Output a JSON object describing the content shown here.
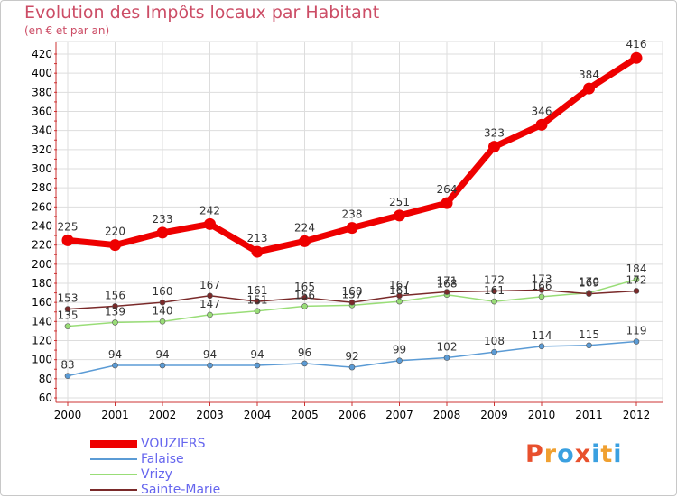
{
  "title": "Evolution des Impôts locaux par Habitant",
  "subtitle": "(en € et par an)",
  "logo": {
    "text": "Proxiti",
    "colors": [
      "#e8502d",
      "#f0a030",
      "#3aa0e0",
      "#e8502d",
      "#3aa0e0",
      "#f0a030",
      "#3aa0e0"
    ]
  },
  "chart_data": {
    "type": "line",
    "title": "Evolution des Impôts locaux par Habitant",
    "subtitle": "(en € et par an)",
    "xlabel": "",
    "ylabel": "",
    "x": [
      "2000",
      "2001",
      "2002",
      "2003",
      "2004",
      "2005",
      "2006",
      "2007",
      "2008",
      "2009",
      "2010",
      "2011",
      "2012"
    ],
    "ylim": [
      60,
      420
    ],
    "yticks": [
      60,
      80,
      100,
      120,
      140,
      160,
      180,
      200,
      220,
      240,
      260,
      280,
      300,
      320,
      340,
      360,
      380,
      400,
      420
    ],
    "grid": true,
    "legend_position": "bottom-left",
    "series": [
      {
        "name": "VOUZIERS",
        "color": "#ee0000",
        "values": [
          225,
          220,
          233,
          242,
          213,
          224,
          238,
          251,
          264,
          323,
          346,
          384,
          416
        ]
      },
      {
        "name": "Falaise",
        "color": "#5b9bd5",
        "values": [
          83,
          94,
          94,
          94,
          94,
          96,
          92,
          99,
          102,
          108,
          114,
          115,
          119
        ]
      },
      {
        "name": "Vrizy",
        "color": "#99dd77",
        "values": [
          135,
          139,
          140,
          147,
          151,
          156,
          157,
          161,
          168,
          161,
          166,
          170,
          184
        ]
      },
      {
        "name": "Sainte-Marie",
        "color": "#7a2a2a",
        "values": [
          153,
          156,
          160,
          167,
          161,
          165,
          160,
          167,
          171,
          172,
          173,
          169,
          172
        ]
      }
    ]
  }
}
